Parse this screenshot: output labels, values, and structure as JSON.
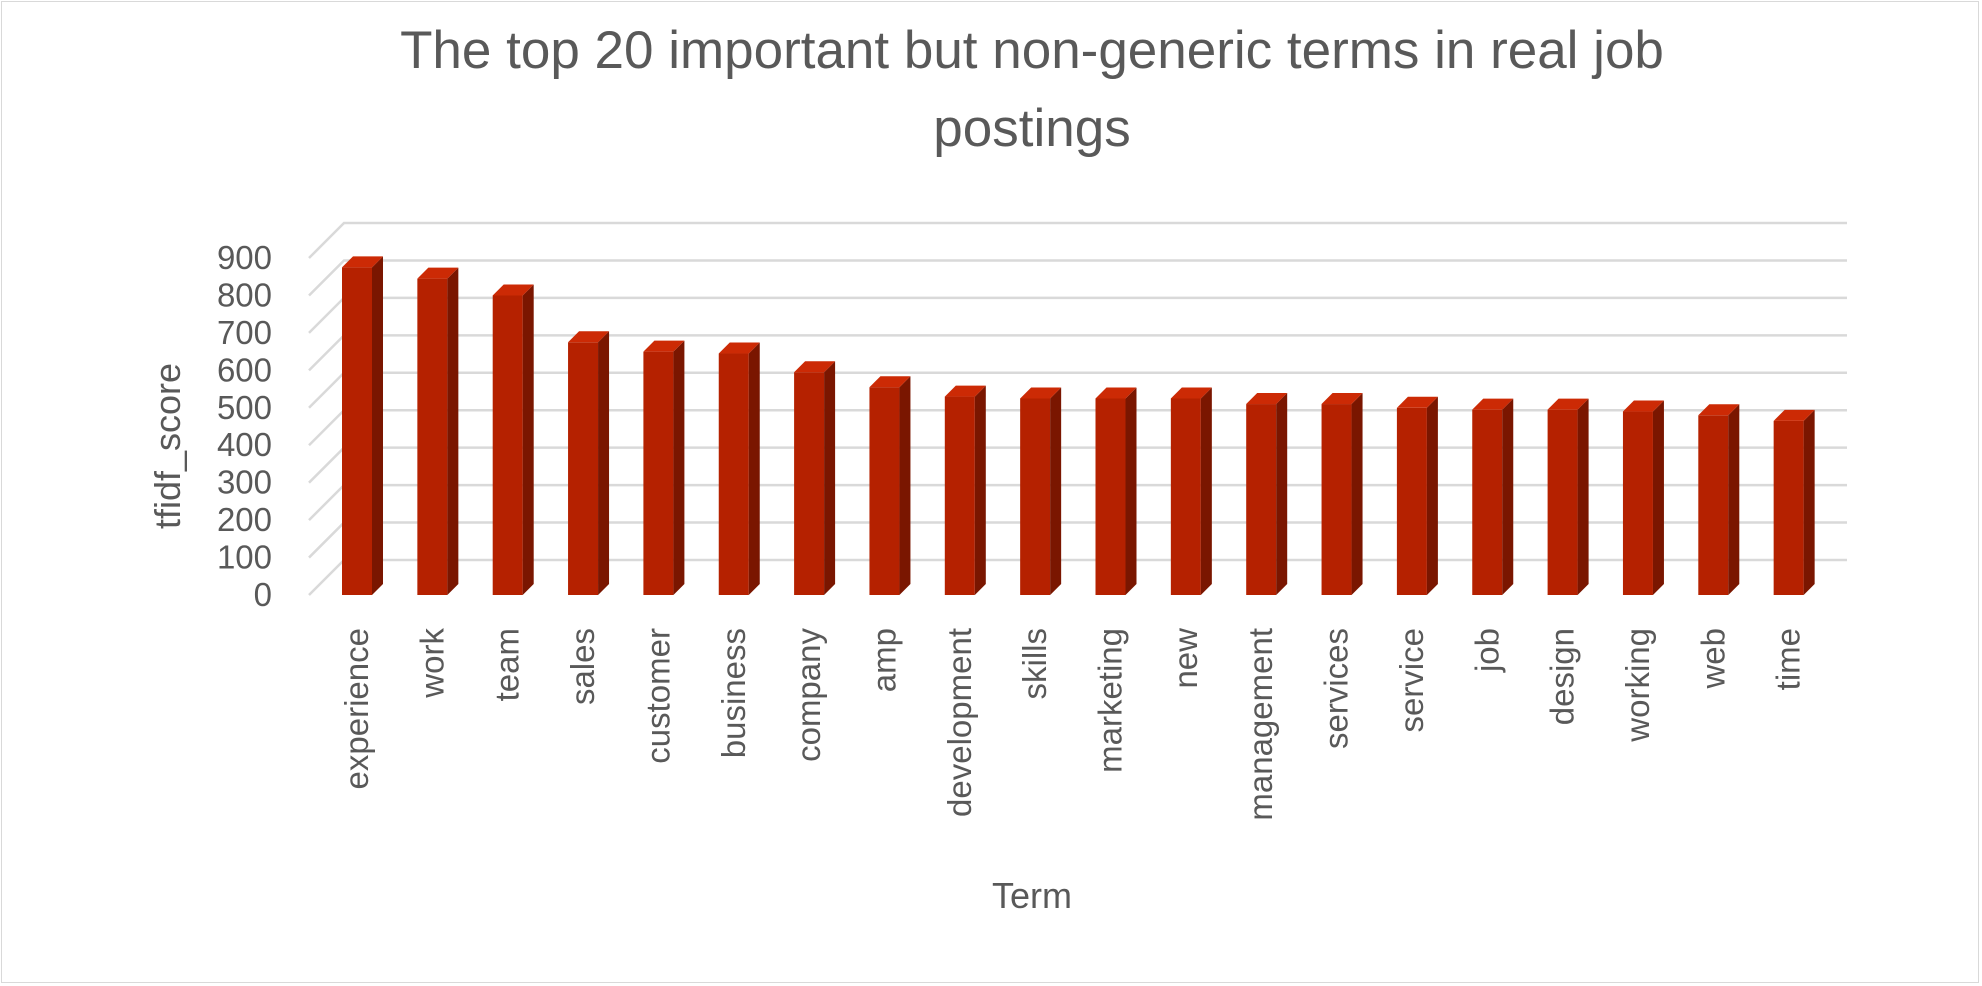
{
  "chart_data": {
    "type": "bar",
    "style": "3d-column",
    "title_lines": [
      "The top 20 important but non-generic terms in real job",
      "postings"
    ],
    "xlabel": "Term",
    "ylabel": "tfidf_score",
    "ylim": [
      0,
      900
    ],
    "yticks": [
      0,
      100,
      200,
      300,
      400,
      500,
      600,
      700,
      800,
      900
    ],
    "grid": true,
    "legend": "none",
    "categories": [
      "experience",
      "work",
      "team",
      "sales",
      "customer",
      "business",
      "company",
      "amp",
      "development",
      "skills",
      "marketing",
      "new",
      "management",
      "services",
      "service",
      "job",
      "design",
      "working",
      "web",
      "time"
    ],
    "values": [
      875,
      845,
      800,
      675,
      650,
      645,
      595,
      555,
      530,
      525,
      525,
      525,
      510,
      510,
      500,
      495,
      495,
      490,
      480,
      465
    ],
    "colors": {
      "bar_front": "#b52100",
      "bar_side": "#7a1600",
      "bar_top": "#cc2a05",
      "grid": "#d9d9d9",
      "text": "#595959"
    }
  }
}
